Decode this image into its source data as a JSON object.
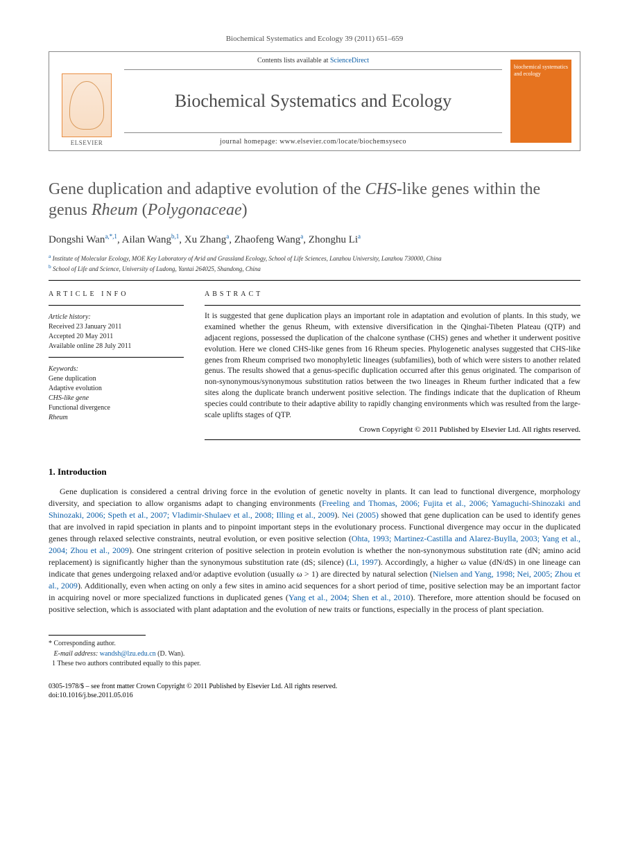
{
  "citation": "Biochemical Systematics and Ecology 39 (2011) 651–659",
  "header": {
    "contents_line_pre": "Contents lists available at ",
    "contents_line_link": "ScienceDirect",
    "journal": "Biochemical Systematics and Ecology",
    "homepage_label": "journal homepage: ",
    "homepage_url": "www.elsevier.com/locate/biochemsyseco",
    "publisher": "ELSEVIER",
    "cover_text": "biochemical systematics and ecology"
  },
  "title_line1": "Gene duplication and adaptive evolution of the ",
  "title_ital1": "CHS",
  "title_line2": "-like genes within the genus ",
  "title_ital2": "Rheum",
  "title_line3": " (",
  "title_ital3": "Polygonaceae",
  "title_line4": ")",
  "authors_html": "Dongshi Wan",
  "authors": [
    {
      "name": "Dongshi Wan",
      "sup": "a,*,1"
    },
    {
      "name": "Ailan Wang",
      "sup": "b,1"
    },
    {
      "name": "Xu Zhang",
      "sup": "a"
    },
    {
      "name": "Zhaofeng Wang",
      "sup": "a"
    },
    {
      "name": "Zhonghu Li",
      "sup": "a"
    }
  ],
  "affiliations": [
    {
      "sup": "a",
      "text": "Institute of Molecular Ecology, MOE Key Laboratory of Arid and Grassland Ecology, School of Life Sciences, Lanzhou University, Lanzhou 730000, China"
    },
    {
      "sup": "b",
      "text": "School of Life and Science, University of Ludong, Yantai 264025, Shandong, China"
    }
  ],
  "info_label": "ARTICLE INFO",
  "abstract_label": "ABSTRACT",
  "history_heading": "Article history:",
  "history": [
    "Received 23 January 2011",
    "Accepted 20 May 2011",
    "Available online 28 July 2011"
  ],
  "keywords_heading": "Keywords:",
  "keywords": [
    "Gene duplication",
    "Adaptive evolution",
    "CHS-like gene",
    "Functional divergence",
    "Rheum"
  ],
  "abstract": "It is suggested that gene duplication plays an important role in adaptation and evolution of plants. In this study, we examined whether the genus Rheum, with extensive diversification in the Qinghai-Tibeten Plateau (QTP) and adjacent regions, possessed the duplication of the chalcone synthase (CHS) genes and whether it underwent positive evolution. Here we cloned CHS-like genes from 16 Rheum species. Phylogenetic analyses suggested that CHS-like genes from Rheum comprised two monophyletic lineages (subfamilies), both of which were sisters to another related genus. The results showed that a genus-specific duplication occurred after this genus originated. The comparison of non-synonymous/synonymous substitution ratios between the two lineages in Rheum further indicated that a few sites along the duplicate branch underwent positive selection. The findings indicate that the duplication of Rheum species could contribute to their adaptive ability to rapidly changing environments which was resulted from the large-scale uplifts stages of QTP.",
  "copyright": "Crown Copyright © 2011 Published by Elsevier Ltd. All rights reserved.",
  "section1": "1. Introduction",
  "intro_p1_a": "Gene duplication is considered a central driving force in the evolution of genetic novelty in plants. It can lead to functional divergence, morphology diversity, and speciation to allow organisms adapt to changing environments (",
  "intro_ref1": "Freeling and Thomas, 2006; Fujita et al., 2006; Yamaguchi-Shinozaki and Shinozaki, 2006; Speth et al., 2007; Vladimir-Shulaev et al., 2008; Illing et al., 2009",
  "intro_p1_b": "). ",
  "intro_ref2": "Nei (2005)",
  "intro_p1_c": " showed that gene duplication can be used to identify genes that are involved in rapid speciation in plants and to pinpoint important steps in the evolutionary process. Functional divergence may occur in the duplicated genes through relaxed selective constraints, neutral evolution, or even positive selection (",
  "intro_ref3": "Ohta, 1993; Martinez-Castilla and Alarez-Buylla, 2003; Yang et al., 2004; Zhou et al., 2009",
  "intro_p1_d": "). One stringent criterion of positive selection in protein evolution is whether the non-synonymous substitution rate (dN; amino acid replacement) is significantly higher than the synonymous substitution rate (dS; silence) (",
  "intro_ref4": "Li, 1997",
  "intro_p1_e": "). Accordingly, a higher ω value (dN/dS) in one lineage can indicate that genes undergoing relaxed and/or adaptive evolution (usually ω > 1) are directed by natural selection (",
  "intro_ref5": "Nielsen and Yang, 1998; Nei, 2005; Zhou et al., 2009",
  "intro_p1_f": "). Additionally, even when acting on only a few sites in amino acid sequences for a short period of time, positive selection may be an important factor in acquiring novel or more specialized functions in duplicated genes (",
  "intro_ref6": "Yang et al., 2004; Shen et al., 2010",
  "intro_p1_g": "). Therefore, more attention should be focused on positive selection, which is associated with plant adaptation and the evolution of new traits or functions, especially in the process of plant speciation.",
  "footnotes": {
    "corr": "* Corresponding author.",
    "email_label": "E-mail address: ",
    "email": "wandsh@lzu.edu.cn",
    "email_tail": " (D. Wan).",
    "equal": "1  These two authors contributed equally to this paper."
  },
  "bottom": {
    "issn": "0305-1978/$ – see front matter Crown Copyright © 2011 Published by Elsevier Ltd. All rights reserved.",
    "doi": "doi:10.1016/j.bse.2011.05.016"
  },
  "colors": {
    "link": "#0b5ea8",
    "cover_bg": "#e6731f",
    "title_gray": "#595959"
  }
}
